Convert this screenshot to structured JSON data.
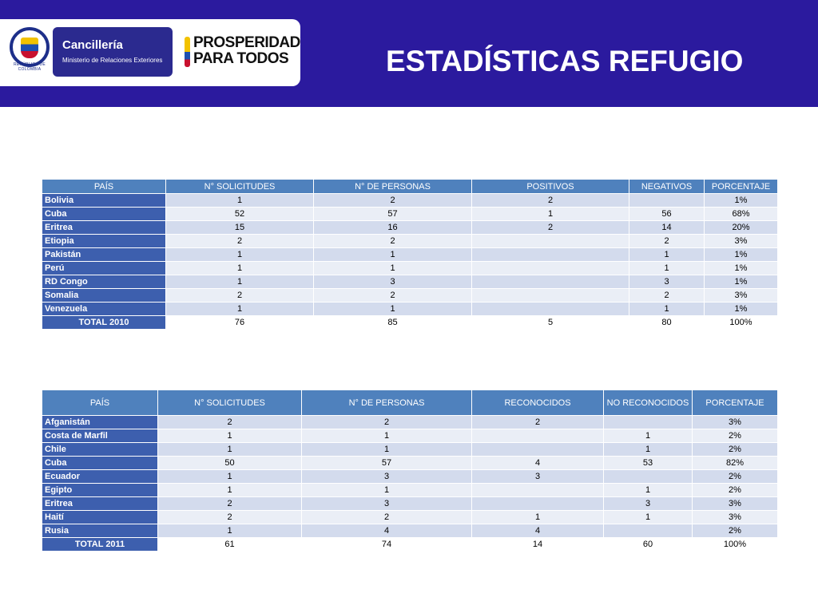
{
  "header": {
    "seal_text": "REPÚBLICA DE COLOMBIA",
    "cancilleria_title": "Cancillería",
    "cancilleria_sub": "Ministerio de Relaciones Exteriores",
    "prosperidad_line1": "PROSPERIDAD",
    "prosperidad_line2": "PARA TODOS",
    "title": "ESTADÍSTICAS REFUGIO"
  },
  "table_2010": {
    "headers": [
      "PAÍS",
      "N° SOLICITUDES",
      "N° DE PERSONAS",
      "POSITIVOS",
      "NEGATIVOS",
      "PORCENTAJE"
    ],
    "rows": [
      [
        "Bolivia",
        "1",
        "2",
        "2",
        "",
        "1%"
      ],
      [
        "Cuba",
        "52",
        "57",
        "1",
        "56",
        "68%"
      ],
      [
        "Eritrea",
        "15",
        "16",
        "2",
        "14",
        "20%"
      ],
      [
        "Etiopia",
        "2",
        "2",
        "",
        "2",
        "3%"
      ],
      [
        "Pakistán",
        "1",
        "1",
        "",
        "1",
        "1%"
      ],
      [
        "Perú",
        "1",
        "1",
        "",
        "1",
        "1%"
      ],
      [
        "RD Congo",
        "1",
        "3",
        "",
        "3",
        "1%"
      ],
      [
        "Somalia",
        "2",
        "2",
        "",
        "2",
        "3%"
      ],
      [
        "Venezuela",
        "1",
        "1",
        "",
        "1",
        "1%"
      ]
    ],
    "total": [
      "TOTAL 2010",
      "76",
      "85",
      "5",
      "80",
      "100%"
    ]
  },
  "table_2011": {
    "headers": [
      "PAÍS",
      "N° SOLICITUDES",
      "N° DE PERSONAS",
      "RECONOCIDOS",
      "NO RECONOCIDOS",
      "PORCENTAJE"
    ],
    "rows": [
      [
        "Afganistán",
        "2",
        "2",
        "2",
        "",
        "3%"
      ],
      [
        "Costa de Marfil",
        "1",
        "1",
        "",
        "1",
        "2%"
      ],
      [
        "Chile",
        "1",
        "1",
        "",
        "1",
        "2%"
      ],
      [
        "Cuba",
        "50",
        "57",
        "4",
        "53",
        "82%"
      ],
      [
        "Ecuador",
        "1",
        "3",
        "3",
        "",
        "2%"
      ],
      [
        "Egipto",
        "1",
        "1",
        "",
        "1",
        "2%"
      ],
      [
        "Eritrea",
        "2",
        "3",
        "",
        "3",
        "3%"
      ],
      [
        "Haití",
        "2",
        "2",
        "1",
        "1",
        "3%"
      ],
      [
        "Rusia",
        "1",
        "4",
        "4",
        "",
        "2%"
      ]
    ],
    "total": [
      "TOTAL 2011",
      "61",
      "74",
      "14",
      "60",
      "100%"
    ]
  },
  "colors": {
    "header_bg": "#2b1a9e",
    "table_header": "#4f81bd",
    "country_cell": "#3d5fae",
    "row_odd": "#d3dbed",
    "row_even": "#eaeef6"
  }
}
